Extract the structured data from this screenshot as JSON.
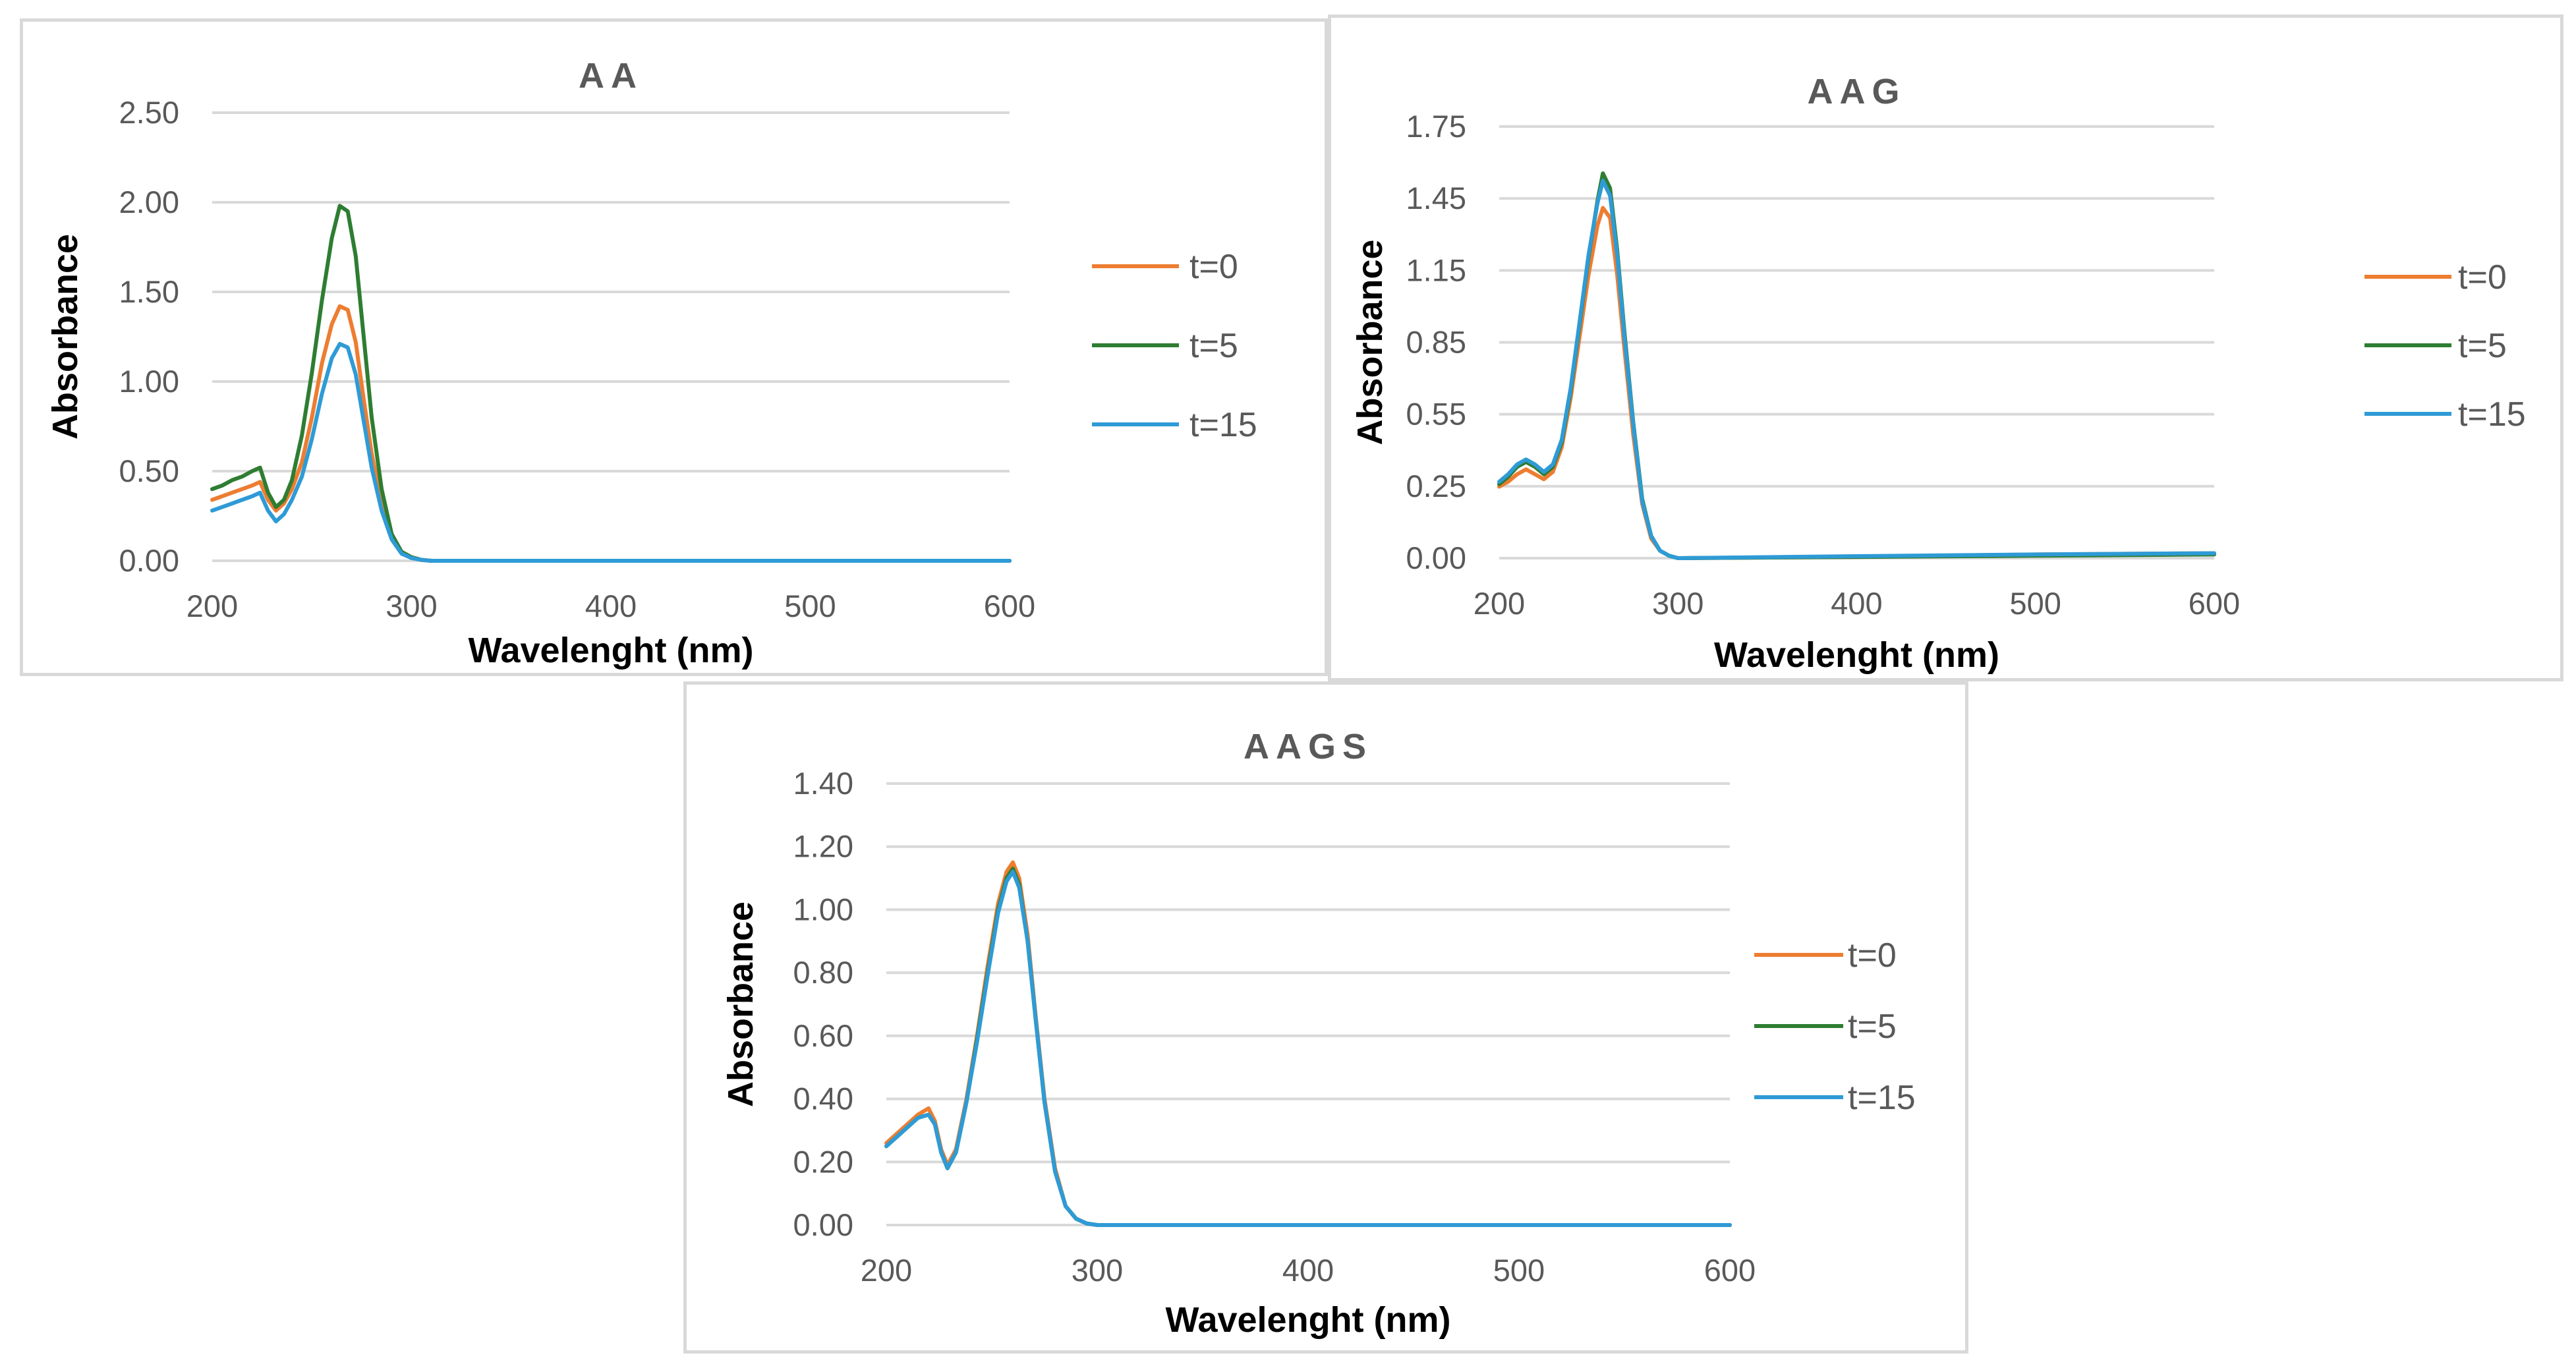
{
  "colors": {
    "t0": "#ED7D31",
    "t5": "#2E7D32",
    "t15": "#2E9BD6"
  },
  "chart_data": [
    {
      "id": "aa",
      "type": "line",
      "title": "AA",
      "xlabel": "Wavelenght (nm)",
      "ylabel": "Absorbance",
      "xlim": [
        200,
        600
      ],
      "ylim": [
        0,
        2.5
      ],
      "xticks": [
        "200",
        "300",
        "400",
        "500",
        "600"
      ],
      "yticks": [
        "0.00",
        "0.50",
        "1.00",
        "1.50",
        "2.00",
        "2.50"
      ],
      "grid": true,
      "legend_position": "right",
      "series": [
        {
          "name": "t=0",
          "color_key": "t0",
          "points": [
            [
              200,
              0.34
            ],
            [
              205,
              0.36
            ],
            [
              210,
              0.38
            ],
            [
              215,
              0.4
            ],
            [
              220,
              0.42
            ],
            [
              224,
              0.44
            ],
            [
              228,
              0.34
            ],
            [
              232,
              0.28
            ],
            [
              236,
              0.32
            ],
            [
              240,
              0.4
            ],
            [
              245,
              0.55
            ],
            [
              250,
              0.8
            ],
            [
              255,
              1.1
            ],
            [
              260,
              1.32
            ],
            [
              264,
              1.42
            ],
            [
              268,
              1.4
            ],
            [
              272,
              1.22
            ],
            [
              276,
              0.9
            ],
            [
              280,
              0.6
            ],
            [
              285,
              0.32
            ],
            [
              290,
              0.14
            ],
            [
              295,
              0.05
            ],
            [
              300,
              0.02
            ],
            [
              305,
              0.005
            ],
            [
              310,
              0.0
            ],
            [
              600,
              0.0
            ]
          ]
        },
        {
          "name": "t=5",
          "color_key": "t5",
          "points": [
            [
              200,
              0.4
            ],
            [
              205,
              0.42
            ],
            [
              210,
              0.45
            ],
            [
              215,
              0.47
            ],
            [
              220,
              0.5
            ],
            [
              224,
              0.52
            ],
            [
              228,
              0.38
            ],
            [
              232,
              0.3
            ],
            [
              236,
              0.34
            ],
            [
              240,
              0.45
            ],
            [
              245,
              0.7
            ],
            [
              250,
              1.05
            ],
            [
              255,
              1.45
            ],
            [
              260,
              1.8
            ],
            [
              264,
              1.98
            ],
            [
              268,
              1.95
            ],
            [
              272,
              1.7
            ],
            [
              276,
              1.25
            ],
            [
              280,
              0.8
            ],
            [
              285,
              0.4
            ],
            [
              290,
              0.15
            ],
            [
              295,
              0.05
            ],
            [
              300,
              0.02
            ],
            [
              305,
              0.005
            ],
            [
              310,
              0.0
            ],
            [
              600,
              0.0
            ]
          ]
        },
        {
          "name": "t=15",
          "color_key": "t15",
          "points": [
            [
              200,
              0.28
            ],
            [
              205,
              0.3
            ],
            [
              210,
              0.32
            ],
            [
              215,
              0.34
            ],
            [
              220,
              0.36
            ],
            [
              224,
              0.38
            ],
            [
              228,
              0.28
            ],
            [
              232,
              0.22
            ],
            [
              236,
              0.26
            ],
            [
              240,
              0.34
            ],
            [
              245,
              0.47
            ],
            [
              250,
              0.68
            ],
            [
              255,
              0.93
            ],
            [
              260,
              1.13
            ],
            [
              264,
              1.21
            ],
            [
              268,
              1.19
            ],
            [
              272,
              1.04
            ],
            [
              276,
              0.78
            ],
            [
              280,
              0.52
            ],
            [
              285,
              0.28
            ],
            [
              290,
              0.12
            ],
            [
              295,
              0.04
            ],
            [
              300,
              0.015
            ],
            [
              305,
              0.005
            ],
            [
              310,
              0.0
            ],
            [
              600,
              0.0
            ]
          ]
        }
      ]
    },
    {
      "id": "aag",
      "type": "line",
      "title": "AAG",
      "xlabel": "Wavelenght (nm)",
      "ylabel": "Absorbance",
      "xlim": [
        200,
        600
      ],
      "ylim": [
        0,
        1.75
      ],
      "xticks": [
        "200",
        "300",
        "400",
        "500",
        "600"
      ],
      "yticks": [
        "0.00",
        "0.25",
        "0.55",
        "0.85",
        "1.15",
        "1.45",
        "1.75"
      ],
      "grid": true,
      "legend_position": "right",
      "series": [
        {
          "name": "t=0",
          "color_key": "t0",
          "points": [
            [
              200,
              0.29
            ],
            [
              205,
              0.31
            ],
            [
              210,
              0.34
            ],
            [
              215,
              0.36
            ],
            [
              220,
              0.34
            ],
            [
              225,
              0.32
            ],
            [
              230,
              0.35
            ],
            [
              235,
              0.45
            ],
            [
              240,
              0.65
            ],
            [
              245,
              0.9
            ],
            [
              250,
              1.15
            ],
            [
              255,
              1.35
            ],
            [
              258,
              1.42
            ],
            [
              262,
              1.38
            ],
            [
              266,
              1.15
            ],
            [
              270,
              0.85
            ],
            [
              275,
              0.5
            ],
            [
              280,
              0.22
            ],
            [
              285,
              0.08
            ],
            [
              290,
              0.03
            ],
            [
              295,
              0.01
            ],
            [
              300,
              0.0
            ],
            [
              400,
              0.005
            ],
            [
              500,
              0.015
            ],
            [
              600,
              0.02
            ]
          ]
        },
        {
          "name": "t=5",
          "color_key": "t5",
          "points": [
            [
              200,
              0.3
            ],
            [
              205,
              0.33
            ],
            [
              210,
              0.37
            ],
            [
              215,
              0.39
            ],
            [
              220,
              0.37
            ],
            [
              225,
              0.34
            ],
            [
              230,
              0.37
            ],
            [
              235,
              0.47
            ],
            [
              240,
              0.68
            ],
            [
              245,
              0.95
            ],
            [
              250,
              1.22
            ],
            [
              255,
              1.45
            ],
            [
              258,
              1.56
            ],
            [
              262,
              1.5
            ],
            [
              266,
              1.25
            ],
            [
              270,
              0.92
            ],
            [
              275,
              0.55
            ],
            [
              280,
              0.24
            ],
            [
              285,
              0.09
            ],
            [
              290,
              0.03
            ],
            [
              295,
              0.01
            ],
            [
              300,
              0.0
            ],
            [
              400,
              0.005
            ],
            [
              500,
              0.01
            ],
            [
              600,
              0.015
            ]
          ]
        },
        {
          "name": "t=15",
          "color_key": "t15",
          "points": [
            [
              200,
              0.31
            ],
            [
              205,
              0.34
            ],
            [
              210,
              0.38
            ],
            [
              215,
              0.4
            ],
            [
              220,
              0.38
            ],
            [
              225,
              0.35
            ],
            [
              230,
              0.38
            ],
            [
              235,
              0.48
            ],
            [
              240,
              0.69
            ],
            [
              245,
              0.96
            ],
            [
              250,
              1.23
            ],
            [
              255,
              1.44
            ],
            [
              258,
              1.53
            ],
            [
              262,
              1.47
            ],
            [
              266,
              1.23
            ],
            [
              270,
              0.9
            ],
            [
              275,
              0.54
            ],
            [
              280,
              0.23
            ],
            [
              285,
              0.09
            ],
            [
              290,
              0.03
            ],
            [
              295,
              0.01
            ],
            [
              300,
              0.0
            ],
            [
              400,
              0.008
            ],
            [
              500,
              0.015
            ],
            [
              600,
              0.02
            ]
          ]
        }
      ]
    },
    {
      "id": "aags",
      "type": "line",
      "title": "AAGS",
      "xlabel": "Wavelenght (nm)",
      "ylabel": "Absorbance",
      "xlim": [
        200,
        600
      ],
      "ylim": [
        0,
        1.4
      ],
      "xticks": [
        "200",
        "300",
        "400",
        "500",
        "600"
      ],
      "yticks": [
        "0.00",
        "0.20",
        "0.40",
        "0.60",
        "0.80",
        "1.00",
        "1.20",
        "1.40"
      ],
      "grid": true,
      "legend_position": "right",
      "series": [
        {
          "name": "t=0",
          "color_key": "t0",
          "points": [
            [
              200,
              0.26
            ],
            [
              205,
              0.29
            ],
            [
              210,
              0.32
            ],
            [
              215,
              0.35
            ],
            [
              220,
              0.37
            ],
            [
              223,
              0.33
            ],
            [
              226,
              0.24
            ],
            [
              229,
              0.19
            ],
            [
              233,
              0.24
            ],
            [
              238,
              0.4
            ],
            [
              243,
              0.6
            ],
            [
              248,
              0.82
            ],
            [
              253,
              1.02
            ],
            [
              257,
              1.12
            ],
            [
              260,
              1.15
            ],
            [
              263,
              1.1
            ],
            [
              267,
              0.92
            ],
            [
              271,
              0.65
            ],
            [
              275,
              0.4
            ],
            [
              280,
              0.18
            ],
            [
              285,
              0.06
            ],
            [
              290,
              0.02
            ],
            [
              295,
              0.005
            ],
            [
              300,
              0.0
            ],
            [
              600,
              0.0
            ]
          ]
        },
        {
          "name": "t=5",
          "color_key": "t5",
          "points": [
            [
              200,
              0.25
            ],
            [
              205,
              0.28
            ],
            [
              210,
              0.31
            ],
            [
              215,
              0.34
            ],
            [
              220,
              0.35
            ],
            [
              223,
              0.32
            ],
            [
              226,
              0.23
            ],
            [
              229,
              0.18
            ],
            [
              233,
              0.23
            ],
            [
              238,
              0.39
            ],
            [
              243,
              0.59
            ],
            [
              248,
              0.8
            ],
            [
              253,
              1.0
            ],
            [
              257,
              1.1
            ],
            [
              260,
              1.13
            ],
            [
              263,
              1.08
            ],
            [
              267,
              0.9
            ],
            [
              271,
              0.64
            ],
            [
              275,
              0.39
            ],
            [
              280,
              0.17
            ],
            [
              285,
              0.06
            ],
            [
              290,
              0.02
            ],
            [
              295,
              0.005
            ],
            [
              300,
              0.0
            ],
            [
              600,
              0.0
            ]
          ]
        },
        {
          "name": "t=15",
          "color_key": "t15",
          "points": [
            [
              200,
              0.25
            ],
            [
              205,
              0.28
            ],
            [
              210,
              0.31
            ],
            [
              215,
              0.34
            ],
            [
              220,
              0.35
            ],
            [
              223,
              0.32
            ],
            [
              226,
              0.23
            ],
            [
              229,
              0.18
            ],
            [
              233,
              0.23
            ],
            [
              238,
              0.39
            ],
            [
              243,
              0.58
            ],
            [
              248,
              0.79
            ],
            [
              253,
              0.99
            ],
            [
              257,
              1.09
            ],
            [
              260,
              1.12
            ],
            [
              263,
              1.07
            ],
            [
              267,
              0.9
            ],
            [
              271,
              0.64
            ],
            [
              275,
              0.39
            ],
            [
              280,
              0.17
            ],
            [
              285,
              0.06
            ],
            [
              290,
              0.02
            ],
            [
              295,
              0.005
            ],
            [
              300,
              0.0
            ],
            [
              600,
              0.0
            ]
          ]
        }
      ]
    }
  ]
}
